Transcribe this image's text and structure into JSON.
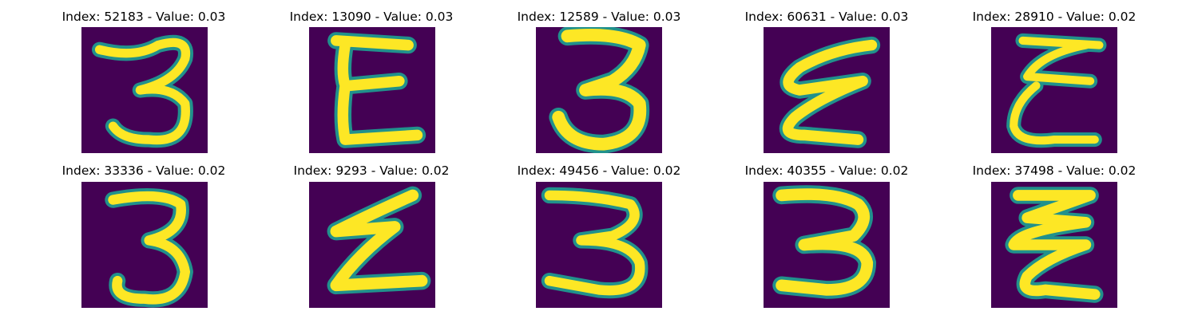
{
  "figure": {
    "background_color": "#ffffff",
    "image_background_color": "#440154",
    "stroke_colors": [
      "#fde725",
      "#5ec962",
      "#21918c"
    ],
    "panels": [
      {
        "title": "Index: 52183 - Value: 0.03",
        "glyph": "3"
      },
      {
        "title": "Index: 13090 - Value: 0.03",
        "glyph": "E"
      },
      {
        "title": "Index: 12589 - Value: 0.03",
        "glyph": "3"
      },
      {
        "title": "Index: 60631 - Value: 0.03",
        "glyph": "E"
      },
      {
        "title": "Index: 28910 - Value: 0.02",
        "glyph": "E"
      },
      {
        "title": "Index: 33336 - Value: 0.02",
        "glyph": "3"
      },
      {
        "title": "Index: 9293 - Value: 0.02",
        "glyph": "E"
      },
      {
        "title": "Index: 49456 - Value: 0.02",
        "glyph": "3"
      },
      {
        "title": "Index: 40355 - Value: 0.02",
        "glyph": "3"
      },
      {
        "title": "Index: 37498 - Value: 0.02",
        "glyph": "E"
      }
    ]
  }
}
